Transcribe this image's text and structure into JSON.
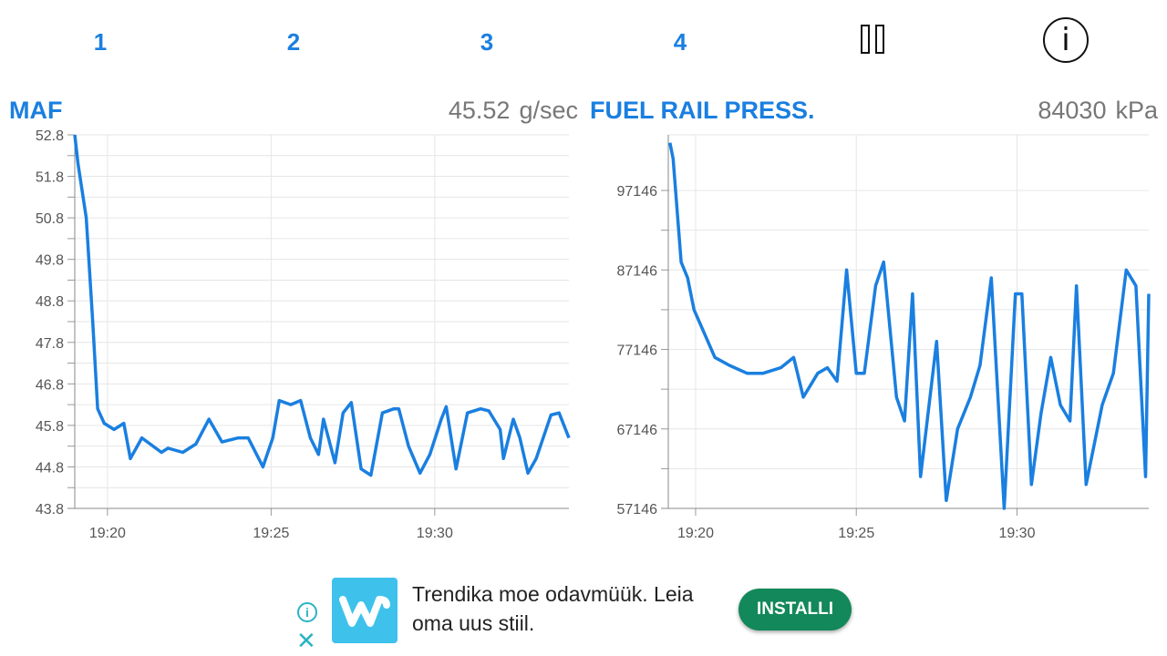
{
  "tabs": [
    {
      "label": "1"
    },
    {
      "label": "2"
    },
    {
      "label": "3"
    },
    {
      "label": "4"
    }
  ],
  "icons": {
    "pause": "pause-icon",
    "info": "info-icon",
    "info_glyph": "i"
  },
  "colors": {
    "accent": "#1a7fe0",
    "value_text": "#777777",
    "grid": "#e6e6e6",
    "cta": "#13885a",
    "logo": "#3ec2ec"
  },
  "gauges": [
    {
      "title": "MAF",
      "value": "45.52",
      "unit": "g/sec"
    },
    {
      "title": "FUEL RAIL PRESS.",
      "value": "84030",
      "unit": "kPa"
    }
  ],
  "ad": {
    "text": "Trendika moe odavmüük. Leia oma uus stiil.",
    "cta": "INSTALLI",
    "info_glyph": "i",
    "close_glyph": "✕"
  },
  "chart_data": [
    {
      "type": "line",
      "y_ticks": [
        "52.8",
        "51.8",
        "50.8",
        "49.8",
        "48.8",
        "47.8",
        "46.8",
        "45.8",
        "44.8",
        "43.8"
      ],
      "x_ticks": [
        "19:20",
        "19:25",
        "19:30"
      ],
      "ylim": [
        43.8,
        52.8
      ],
      "x_tick_minutes": [
        0,
        5,
        10
      ],
      "xlim_minutes": [
        -1.0,
        14.1
      ],
      "grid": true,
      "x_minutes": [
        -1.0,
        -0.9,
        -0.65,
        -0.45,
        -0.3,
        -0.1,
        0.2,
        0.5,
        0.7,
        1.05,
        1.65,
        1.85,
        2.3,
        2.7,
        3.1,
        3.5,
        4.0,
        4.3,
        4.75,
        5.05,
        5.25,
        5.6,
        5.9,
        6.2,
        6.45,
        6.6,
        6.95,
        7.2,
        7.45,
        7.75,
        8.05,
        8.4,
        8.75,
        8.9,
        9.2,
        9.55,
        9.85,
        10.2,
        10.35,
        10.65,
        11.0,
        11.4,
        11.65,
        12.0,
        12.1,
        12.4,
        12.6,
        12.85,
        13.1,
        13.55,
        13.8,
        14.1
      ],
      "values": [
        52.8,
        52.1,
        50.8,
        48.3,
        46.2,
        45.85,
        45.7,
        45.85,
        45.0,
        45.5,
        45.15,
        45.25,
        45.15,
        45.35,
        45.95,
        45.4,
        45.5,
        45.5,
        44.8,
        45.5,
        46.4,
        46.3,
        46.4,
        45.5,
        45.1,
        45.95,
        44.9,
        46.1,
        46.35,
        44.75,
        44.6,
        46.1,
        46.2,
        46.2,
        45.3,
        44.65,
        45.1,
        45.95,
        46.25,
        44.75,
        46.1,
        46.2,
        46.15,
        45.7,
        45.0,
        45.95,
        45.5,
        44.65,
        45.0,
        46.05,
        46.1,
        45.5
      ]
    },
    {
      "type": "line",
      "y_ticks": [
        "97146",
        "87146",
        "77146",
        "67146",
        "57146"
      ],
      "x_ticks": [
        "19:20",
        "19:25",
        "19:30"
      ],
      "ylim": [
        57146,
        104146
      ],
      "x_tick_minutes": [
        0,
        5,
        10
      ],
      "xlim_minutes": [
        -0.85,
        14.1
      ],
      "grid": true,
      "x_minutes": [
        -0.8,
        -0.7,
        -0.45,
        -0.25,
        -0.05,
        0.6,
        1.05,
        1.6,
        2.1,
        2.65,
        3.05,
        3.35,
        3.8,
        4.1,
        4.4,
        4.7,
        5.0,
        5.25,
        5.6,
        5.85,
        6.25,
        6.5,
        6.75,
        7.0,
        7.5,
        7.8,
        8.15,
        8.55,
        8.85,
        9.2,
        9.6,
        9.95,
        10.15,
        10.45,
        10.75,
        11.05,
        11.35,
        11.65,
        11.85,
        12.15,
        12.65,
        13.0,
        13.4,
        13.7,
        14.0,
        14.1
      ],
      "values": [
        103146,
        101146,
        88146,
        86146,
        82146,
        76146,
        75146,
        74146,
        74146,
        74846,
        76146,
        71146,
        74146,
        74846,
        73146,
        87146,
        74146,
        74146,
        85146,
        88146,
        71146,
        68146,
        84146,
        61146,
        78146,
        58146,
        67146,
        71146,
        75146,
        86146,
        57146,
        84146,
        84146,
        60146,
        69146,
        76146,
        70146,
        68146,
        85146,
        60146,
        70146,
        74146,
        87146,
        85146,
        61146,
        84146
      ]
    }
  ]
}
